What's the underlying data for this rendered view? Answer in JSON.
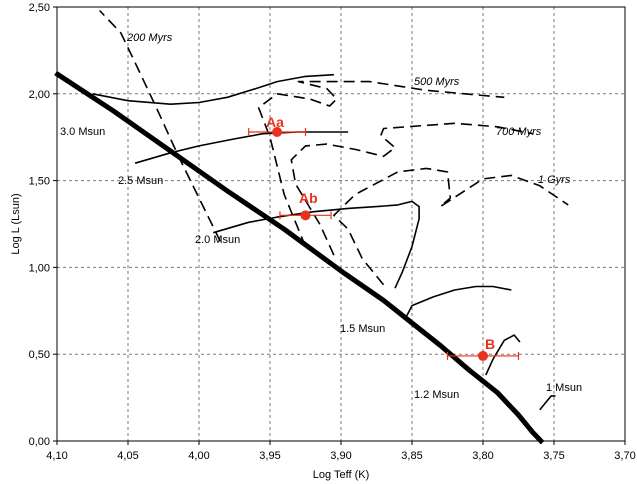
{
  "chart_data": {
    "type": "line",
    "title": "",
    "xlabel": "Log Teff (K)",
    "ylabel": "Log L (Lsun)",
    "xlim": [
      4.1,
      3.7
    ],
    "ylim": [
      0.0,
      2.5
    ],
    "x_reversed": true,
    "grid": true,
    "x_ticks": [
      {
        "v": 4.1,
        "label": "4,10"
      },
      {
        "v": 4.05,
        "label": "4,05"
      },
      {
        "v": 4.0,
        "label": "4,00"
      },
      {
        "v": 3.95,
        "label": "3,95"
      },
      {
        "v": 3.9,
        "label": "3,90"
      },
      {
        "v": 3.85,
        "label": "3,85"
      },
      {
        "v": 3.8,
        "label": "3,80"
      },
      {
        "v": 3.75,
        "label": "3,75"
      },
      {
        "v": 3.7,
        "label": "3,70"
      }
    ],
    "y_ticks": [
      {
        "v": 0.0,
        "label": "0,00"
      },
      {
        "v": 0.5,
        "label": "0,50"
      },
      {
        "v": 1.0,
        "label": "1,00"
      },
      {
        "v": 1.5,
        "label": "1,50"
      },
      {
        "v": 2.0,
        "label": "2,00"
      },
      {
        "v": 2.5,
        "label": "2,50"
      }
    ],
    "zams": {
      "name": "",
      "points": [
        [
          4.101,
          2.12
        ],
        [
          4.06,
          1.9
        ],
        [
          4.02,
          1.67
        ],
        [
          3.98,
          1.44
        ],
        [
          3.94,
          1.22
        ],
        [
          3.9,
          0.98
        ],
        [
          3.87,
          0.81
        ],
        [
          3.85,
          0.68
        ],
        [
          3.83,
          0.55
        ],
        [
          3.81,
          0.41
        ],
        [
          3.79,
          0.28
        ],
        [
          3.775,
          0.15
        ],
        [
          3.765,
          0.05
        ],
        [
          3.758,
          -0.01
        ]
      ]
    },
    "tracks": [
      {
        "name": "3.0 Msun",
        "points": [
          [
            4.075,
            2.0
          ],
          [
            4.05,
            1.96
          ],
          [
            4.02,
            1.94
          ],
          [
            4.0,
            1.95
          ],
          [
            3.98,
            1.98
          ],
          [
            3.96,
            2.03
          ],
          [
            3.945,
            2.07
          ],
          [
            3.925,
            2.1
          ],
          [
            3.905,
            2.11
          ]
        ]
      },
      {
        "name": "2.5 Msun",
        "points": [
          [
            4.045,
            1.6
          ],
          [
            4.02,
            1.66
          ],
          [
            4.0,
            1.7
          ],
          [
            3.975,
            1.74
          ],
          [
            3.955,
            1.77
          ],
          [
            3.93,
            1.78
          ],
          [
            3.91,
            1.78
          ],
          [
            3.895,
            1.78
          ]
        ]
      },
      {
        "name": "2.0 Msun",
        "points": [
          [
            3.99,
            1.2
          ],
          [
            3.965,
            1.26
          ],
          [
            3.945,
            1.29
          ],
          [
            3.92,
            1.32
          ],
          [
            3.895,
            1.34
          ],
          [
            3.875,
            1.35
          ],
          [
            3.86,
            1.36
          ],
          [
            3.85,
            1.38
          ],
          [
            3.845,
            1.35
          ],
          [
            3.845,
            1.28
          ],
          [
            3.85,
            1.12
          ],
          [
            3.857,
            0.97
          ],
          [
            3.862,
            0.88
          ]
        ]
      },
      {
        "name": "1.5 Msun",
        "points": [
          [
            3.855,
            0.7
          ],
          [
            3.85,
            0.78
          ],
          [
            3.835,
            0.83
          ],
          [
            3.82,
            0.87
          ],
          [
            3.805,
            0.89
          ],
          [
            3.793,
            0.89
          ],
          [
            3.78,
            0.87
          ]
        ]
      },
      {
        "name": "1.2 Msun",
        "points": [
          [
            3.798,
            0.38
          ],
          [
            3.793,
            0.47
          ],
          [
            3.785,
            0.58
          ],
          [
            3.778,
            0.61
          ],
          [
            3.774,
            0.57
          ]
        ]
      },
      {
        "name": "1 Msun",
        "points": [
          [
            3.76,
            0.18
          ],
          [
            3.755,
            0.23
          ],
          [
            3.752,
            0.26
          ],
          [
            3.749,
            0.26
          ]
        ]
      }
    ],
    "isochrones": [
      {
        "name": "200 Myrs",
        "points": [
          [
            3.985,
            1.15
          ],
          [
            4.0,
            1.4
          ],
          [
            4.015,
            1.65
          ],
          [
            4.03,
            1.92
          ],
          [
            4.045,
            2.18
          ],
          [
            4.055,
            2.35
          ],
          [
            4.07,
            2.48
          ]
        ]
      },
      {
        "name": "500 Myrs",
        "points": [
          [
            3.925,
            1.12
          ],
          [
            3.94,
            1.42
          ],
          [
            3.95,
            1.75
          ],
          [
            3.958,
            1.92
          ],
          [
            3.945,
            2.0
          ],
          [
            3.922,
            1.97
          ],
          [
            3.908,
            1.93
          ],
          [
            3.903,
            1.97
          ],
          [
            3.91,
            2.03
          ],
          [
            3.93,
            2.07
          ],
          [
            3.88,
            2.07
          ],
          [
            3.84,
            2.02
          ],
          [
            3.8,
            1.99
          ],
          [
            3.785,
            1.98
          ]
        ]
      },
      {
        "name": "700 Myrs",
        "points": [
          [
            3.905,
            1.07
          ],
          [
            3.915,
            1.25
          ],
          [
            3.932,
            1.48
          ],
          [
            3.935,
            1.62
          ],
          [
            3.925,
            1.7
          ],
          [
            3.91,
            1.71
          ],
          [
            3.89,
            1.68
          ],
          [
            3.87,
            1.64
          ],
          [
            3.862,
            1.69
          ],
          [
            3.872,
            1.76
          ],
          [
            3.87,
            1.8
          ],
          [
            3.82,
            1.83
          ],
          [
            3.79,
            1.81
          ],
          [
            3.765,
            1.77
          ]
        ]
      },
      {
        "name": "1 Gyrs",
        "points": [
          [
            3.87,
            0.9
          ],
          [
            3.885,
            1.05
          ],
          [
            3.895,
            1.22
          ],
          [
            3.905,
            1.3
          ],
          [
            3.89,
            1.42
          ],
          [
            3.86,
            1.55
          ],
          [
            3.84,
            1.57
          ],
          [
            3.825,
            1.55
          ],
          [
            3.823,
            1.4
          ],
          [
            3.83,
            1.35
          ],
          [
            3.8,
            1.51
          ],
          [
            3.78,
            1.53
          ],
          [
            3.76,
            1.47
          ],
          [
            3.74,
            1.36
          ]
        ]
      }
    ],
    "stars": [
      {
        "name": "Aa",
        "x": 3.945,
        "y": 1.78,
        "xerr": 0.02
      },
      {
        "name": "Ab",
        "x": 3.925,
        "y": 1.3,
        "xerr": 0.018
      },
      {
        "name": "B",
        "x": 3.8,
        "y": 0.49,
        "xerr": 0.025
      }
    ],
    "colors": {
      "stars": "#e8321e",
      "lines": "#000000",
      "grid": "#7a7a7a"
    }
  }
}
